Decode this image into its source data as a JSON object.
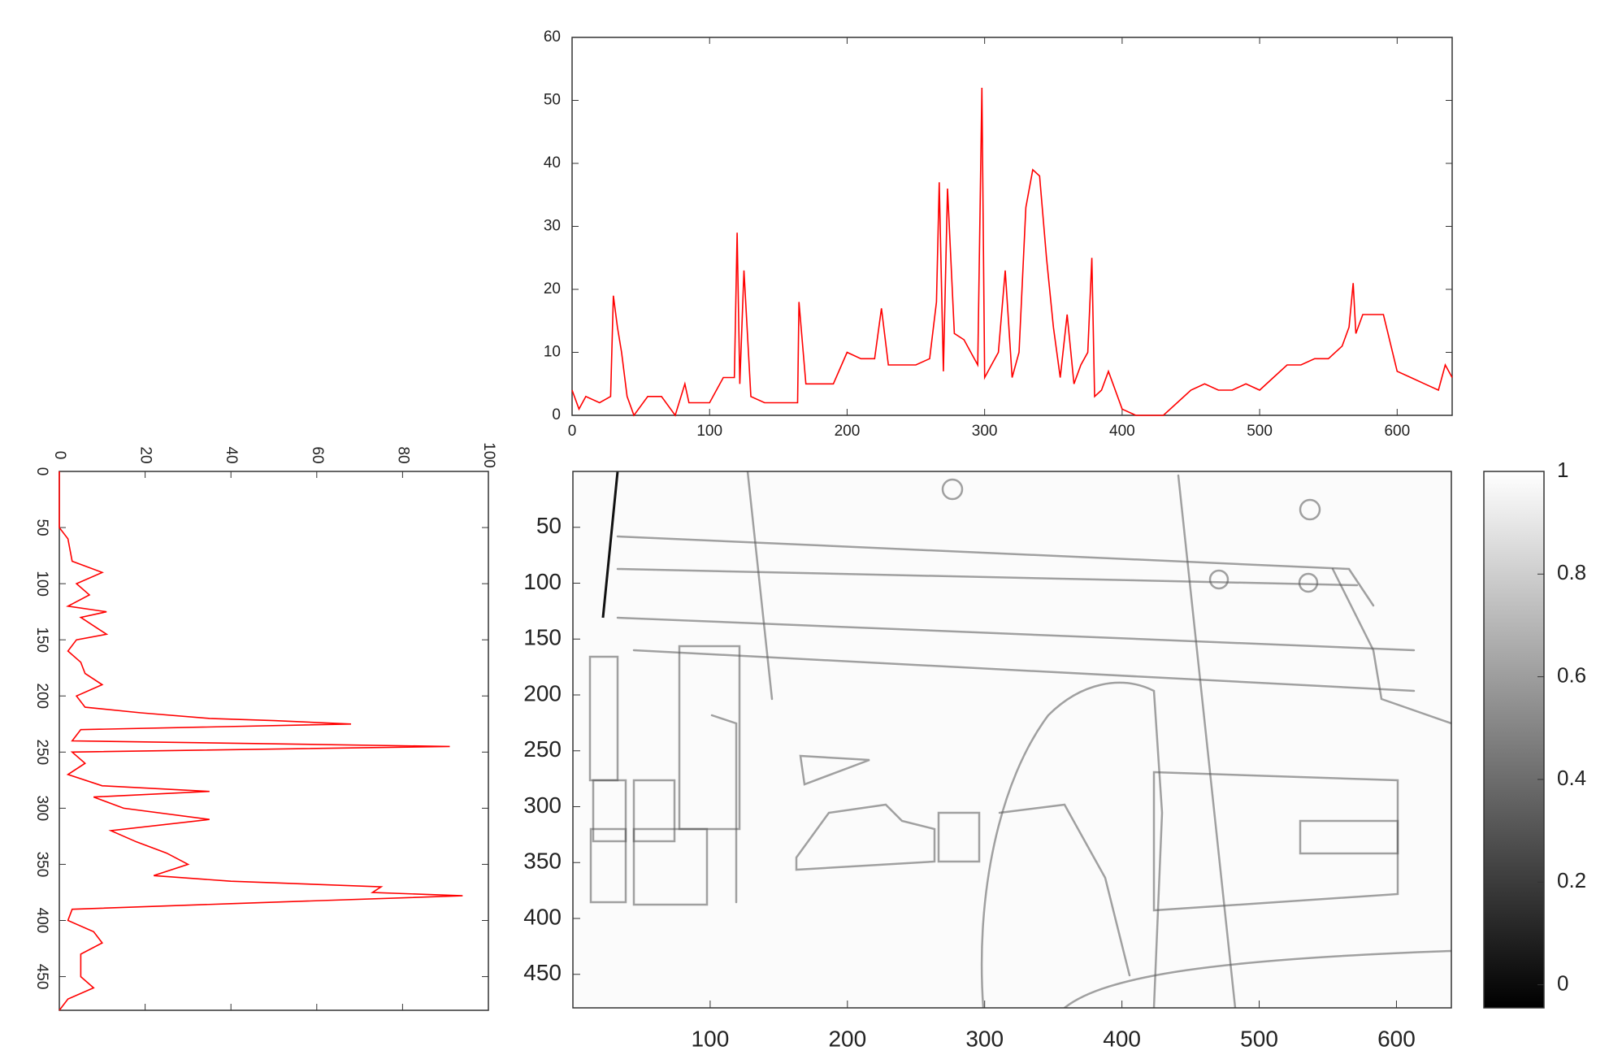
{
  "chart_data": [
    {
      "type": "line",
      "orientation": "horizontal",
      "color": "#ff0000",
      "x": [
        0,
        5,
        10,
        20,
        28,
        30,
        33,
        36,
        40,
        45,
        55,
        65,
        75,
        82,
        85,
        100,
        110,
        118,
        120,
        122,
        125,
        130,
        140,
        150,
        160,
        164,
        165,
        170,
        180,
        190,
        200,
        210,
        220,
        225,
        230,
        240,
        250,
        260,
        265,
        267,
        270,
        273,
        278,
        285,
        290,
        295,
        298,
        300,
        305,
        310,
        315,
        320,
        325,
        330,
        335,
        340,
        345,
        350,
        355,
        360,
        365,
        370,
        375,
        378,
        380,
        385,
        390,
        400,
        410,
        420,
        430,
        440,
        450,
        460,
        470,
        480,
        490,
        500,
        510,
        520,
        530,
        540,
        550,
        560,
        565,
        568,
        570,
        575,
        580,
        590,
        600,
        610,
        620,
        630,
        635,
        640
      ],
      "values": [
        4,
        1,
        3,
        2,
        3,
        19,
        14,
        10,
        3,
        0,
        3,
        3,
        0,
        5,
        2,
        2,
        6,
        6,
        29,
        5,
        23,
        3,
        2,
        2,
        2,
        2,
        18,
        5,
        5,
        5,
        10,
        9,
        9,
        17,
        8,
        8,
        8,
        9,
        18,
        37,
        7,
        36,
        13,
        12,
        10,
        8,
        52,
        6,
        8,
        10,
        23,
        6,
        10,
        33,
        39,
        38,
        25,
        14,
        6,
        16,
        5,
        8,
        10,
        25,
        3,
        4,
        7,
        1,
        0,
        0,
        0,
        2,
        4,
        5,
        4,
        4,
        5,
        4,
        6,
        8,
        8,
        9,
        9,
        11,
        14,
        21,
        13,
        16,
        16,
        16,
        7,
        6,
        5,
        4,
        8,
        6
      ],
      "xlim": [
        0,
        640
      ],
      "xticks": [
        0,
        100,
        200,
        300,
        400,
        500,
        600
      ],
      "ylim": [
        0,
        60
      ],
      "yticks": [
        0,
        10,
        20,
        30,
        40,
        50,
        60
      ]
    },
    {
      "type": "line",
      "orientation": "vertical",
      "color": "#ff0000",
      "x": [
        0,
        50,
        60,
        80,
        90,
        100,
        110,
        120,
        125,
        130,
        140,
        145,
        150,
        160,
        170,
        180,
        190,
        200,
        210,
        215,
        220,
        222,
        225,
        230,
        240,
        245,
        250,
        260,
        270,
        280,
        285,
        290,
        300,
        310,
        320,
        330,
        340,
        350,
        360,
        365,
        370,
        375,
        378,
        385,
        390,
        400,
        410,
        420,
        430,
        450,
        460,
        470,
        480
      ],
      "values": [
        0,
        0,
        2,
        3,
        10,
        4,
        7,
        2,
        11,
        5,
        9,
        11,
        4,
        2,
        5,
        6,
        10,
        4,
        6,
        19,
        35,
        50,
        68,
        5,
        3,
        91,
        3,
        6,
        2,
        10,
        35,
        8,
        15,
        35,
        12,
        18,
        25,
        30,
        22,
        40,
        75,
        73,
        94,
        40,
        3,
        2,
        8,
        10,
        5,
        5,
        8,
        2,
        0
      ],
      "xlim": [
        0,
        480
      ],
      "xticks": [
        0,
        50,
        100,
        150,
        200,
        250,
        300,
        350,
        400,
        450
      ],
      "ylim": [
        0,
        100
      ],
      "yticks": [
        0,
        20,
        40,
        60,
        80,
        100
      ]
    },
    {
      "type": "image",
      "xlim": [
        0,
        640
      ],
      "xticks": [
        100,
        200,
        300,
        400,
        500,
        600
      ],
      "ylim": [
        480,
        0
      ],
      "yticks": [
        50,
        100,
        150,
        200,
        250,
        300,
        350,
        400,
        450
      ]
    },
    {
      "type": "colorbar",
      "ylim": [
        -0.045,
        1
      ],
      "yticks": [
        0,
        0.2,
        0.4,
        0.6,
        0.8,
        1
      ]
    }
  ]
}
